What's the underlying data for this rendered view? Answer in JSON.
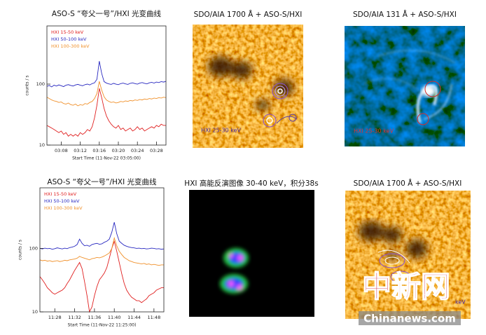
{
  "chart_data": [
    {
      "type": "line",
      "title": "ASO-S “夸父一号”/HXI 光变曲线",
      "xlabel": "Start Time (11-Nov-22 03:05:00)",
      "ylabel": "counts / s",
      "log_y": true,
      "legend": "upper left",
      "xlim": [
        0,
        25
      ],
      "ylim": [
        10,
        900
      ],
      "yticks": [
        10,
        100
      ],
      "xticks": [
        {
          "value": 3,
          "label": "03:08"
        },
        {
          "value": 7,
          "label": "03:12"
        },
        {
          "value": 11,
          "label": "03:16"
        },
        {
          "value": 15,
          "label": "03:20"
        },
        {
          "value": 19,
          "label": "03:24"
        },
        {
          "value": 23,
          "label": "03:28"
        }
      ],
      "x": [
        0,
        0.5,
        1,
        1.5,
        2,
        2.5,
        3,
        3.5,
        4,
        4.5,
        5,
        5.5,
        6,
        6.5,
        7,
        7.5,
        8,
        8.5,
        9,
        9.5,
        10,
        10.5,
        11,
        11.5,
        12,
        12.5,
        13,
        13.5,
        14,
        14.5,
        15,
        15.5,
        16,
        16.5,
        17,
        17.5,
        18,
        18.5,
        19,
        19.5,
        20,
        20.5,
        21,
        21.5,
        22,
        22.5,
        23,
        23.5,
        24,
        24.5,
        25
      ],
      "series": [
        {
          "name": "HXI 15-50 keV",
          "color": "#e02020",
          "values": [
            21,
            20,
            19,
            18,
            17,
            16,
            17,
            15,
            16,
            14,
            15,
            14,
            15,
            14,
            16,
            15,
            16,
            18,
            17,
            20,
            28,
            45,
            85,
            60,
            40,
            30,
            25,
            22,
            20,
            19,
            21,
            18,
            19,
            17,
            18,
            19,
            17,
            18,
            20,
            18,
            19,
            17,
            18,
            19,
            20,
            19,
            21,
            20,
            22,
            21,
            21
          ]
        },
        {
          "name": "HXI 50-100 keV",
          "color": "#2828c0",
          "values": [
            92,
            95,
            90,
            96,
            93,
            97,
            94,
            91,
            96,
            98,
            95,
            93,
            97,
            99,
            96,
            94,
            98,
            100,
            97,
            102,
            105,
            120,
            238,
            150,
            110,
            104,
            101,
            99,
            103,
            100,
            98,
            102,
            104,
            101,
            99,
            103,
            105,
            102,
            100,
            104,
            106,
            103,
            101,
            105,
            107,
            104,
            108,
            106,
            110,
            108,
            111
          ]
        },
        {
          "name": "HXI 100-300 keV",
          "color": "#f0902a",
          "values": [
            61,
            58,
            55,
            53,
            52,
            50,
            51,
            48,
            47,
            49,
            46,
            45,
            47,
            44,
            46,
            45,
            48,
            47,
            50,
            52,
            58,
            70,
            111,
            80,
            62,
            55,
            52,
            50,
            51,
            49,
            50,
            52,
            51,
            53,
            52,
            54,
            53,
            55,
            54,
            56,
            55,
            57,
            56,
            58,
            57,
            59,
            58,
            60,
            59,
            61,
            60
          ]
        }
      ]
    },
    {
      "type": "line",
      "title": "ASO-S “夸父一号”/HXI 光变曲线",
      "xlabel": "Start Time (11-Nov-22 11:25:00)",
      "ylabel": "counts / s",
      "log_y": true,
      "legend": "upper left",
      "xlim": [
        0,
        25
      ],
      "ylim": [
        10,
        900
      ],
      "yticks": [
        10,
        100
      ],
      "xticks": [
        {
          "value": 3,
          "label": "11:28"
        },
        {
          "value": 7,
          "label": "11:32"
        },
        {
          "value": 11,
          "label": "11:36"
        },
        {
          "value": 15,
          "label": "11:40"
        },
        {
          "value": 19,
          "label": "11:44"
        },
        {
          "value": 23,
          "label": "11:48"
        }
      ],
      "x": [
        0,
        0.5,
        1,
        1.5,
        2,
        2.5,
        3,
        3.5,
        4,
        4.5,
        5,
        5.5,
        6,
        6.5,
        7,
        7.5,
        8,
        8.5,
        9,
        9.5,
        10,
        10.5,
        11,
        11.5,
        12,
        12.5,
        13,
        13.5,
        14,
        14.5,
        15,
        15.5,
        16,
        16.5,
        17,
        17.5,
        18,
        18.5,
        19,
        19.5,
        20,
        20.5,
        21,
        21.5,
        22,
        22.5,
        23,
        23.5,
        24,
        24.5,
        25
      ],
      "series": [
        {
          "name": "HXI 15-50 keV",
          "color": "#e02020",
          "values": [
            36,
            32,
            28,
            24,
            22,
            20,
            19,
            20,
            21,
            22,
            24,
            28,
            32,
            38,
            45,
            52,
            60,
            48,
            30,
            18,
            10,
            12,
            18,
            25,
            32,
            36,
            41,
            50,
            70,
            100,
            129,
            90,
            60,
            40,
            28,
            22,
            19,
            17,
            16,
            15,
            15,
            14,
            15,
            16,
            18,
            19,
            20,
            22,
            23,
            24,
            24
          ]
        },
        {
          "name": "HXI 50-100 keV",
          "color": "#2828c0",
          "values": [
            100,
            98,
            101,
            99,
            100,
            97,
            99,
            102,
            100,
            98,
            101,
            99,
            103,
            105,
            108,
            115,
            140,
            120,
            110,
            112,
            108,
            115,
            118,
            120,
            116,
            118,
            125,
            130,
            140,
            180,
            258,
            170,
            130,
            120,
            112,
            108,
            105,
            103,
            102,
            100,
            101,
            99,
            100,
            98,
            99,
            101,
            100,
            98,
            99,
            97,
            98
          ]
        },
        {
          "name": "HXI 100-300 keV",
          "color": "#f0902a",
          "values": [
            66,
            64,
            65,
            63,
            64,
            62,
            63,
            64,
            62,
            63,
            65,
            64,
            66,
            67,
            68,
            70,
            75,
            72,
            70,
            68,
            66,
            69,
            70,
            72,
            71,
            73,
            76,
            80,
            85,
            100,
            146,
            110,
            90,
            80,
            72,
            68,
            64,
            62,
            60,
            59,
            58,
            57,
            58,
            56,
            57,
            55,
            56,
            55,
            54,
            55,
            55
          ]
        }
      ]
    }
  ],
  "images": [
    {
      "title": "SDO/AIA 1700 Å + ASO-S/HXI",
      "label": "HXI 25-30 keV"
    },
    {
      "title": "SDO/AIA 131 Å + ASO-S/HXI",
      "label": "HXI 25-30 keV"
    },
    {
      "title": "HXI 高能反演图像 30-40 keV，积分38s"
    },
    {
      "title": "SDO/AIA 1700 Å + ASO-S/HXI",
      "label": "keV"
    }
  ],
  "watermark": {
    "logo": "中新网",
    "site": "Chinanews.com"
  }
}
